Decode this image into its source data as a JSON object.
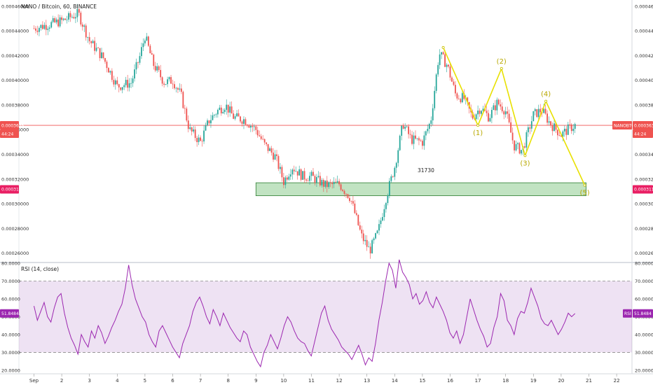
{
  "header": {
    "title": "NANO / Bitcoin, 60, BINANCE",
    "rsi_title": "RSI (14, close)"
  },
  "chart_data": [
    {
      "type": "candlestick",
      "symbol": "NANO / Bitcoin, 60, BINANCE",
      "ylim": [
        0.000253,
        0.000465
      ],
      "yticks": [
        "0.00026000",
        "0.00028000",
        "0.00030000",
        "0.00032000",
        "0.00034000",
        "0.00036000",
        "0.00038000",
        "0.00040000",
        "0.00042000",
        "0.00044000",
        "0.00046000"
      ],
      "xticks": [
        "Sep",
        "2",
        "3",
        "4",
        "5",
        "6",
        "7",
        "8",
        "9",
        "10",
        "11",
        "12",
        "13",
        "14",
        "15",
        "16",
        "17",
        "18",
        "19",
        "20",
        "21",
        "22"
      ],
      "close_path": [
        [
          0,
          0.000442
        ],
        [
          1,
          0.000448
        ],
        [
          1.6,
          0.000454
        ],
        [
          2,
          0.000432
        ],
        [
          2.5,
          0.000418
        ],
        [
          3,
          0.000395
        ],
        [
          3.5,
          0.000398
        ],
        [
          3.8,
          0.000418
        ],
        [
          4,
          0.000436
        ],
        [
          4.3,
          0.000413
        ],
        [
          4.7,
          0.000398
        ],
        [
          5,
          0.0004
        ],
        [
          5.3,
          0.000388
        ],
        [
          5.6,
          0.00036
        ],
        [
          6,
          0.00035
        ],
        [
          6.3,
          0.000367
        ],
        [
          6.6,
          0.000375
        ],
        [
          6.9,
          0.00038
        ],
        [
          7.2,
          0.00037
        ],
        [
          7.6,
          0.000368
        ],
        [
          8,
          0.00036
        ],
        [
          8.3,
          0.000348
        ],
        [
          8.7,
          0.000338
        ],
        [
          9,
          0.000318
        ],
        [
          9.3,
          0.00033
        ],
        [
          9.7,
          0.000322
        ],
        [
          10,
          0.000322
        ],
        [
          10.5,
          0.000315
        ],
        [
          11,
          0.000316
        ],
        [
          11.4,
          0.000305
        ],
        [
          11.8,
          0.000274
        ],
        [
          12.1,
          0.000262
        ],
        [
          12.4,
          0.000277
        ],
        [
          12.7,
          0.000306
        ],
        [
          13,
          0.00033
        ],
        [
          13.3,
          0.000365
        ],
        [
          13.6,
          0.000352
        ],
        [
          14,
          0.00035
        ],
        [
          14.3,
          0.000367
        ],
        [
          14.6,
          0.000422
        ],
        [
          14.9,
          0.000412
        ],
        [
          15.2,
          0.000388
        ],
        [
          15.5,
          0.000385
        ],
        [
          15.8,
          0.00037
        ],
        [
          16.1,
          0.000378
        ],
        [
          16.4,
          0.00037
        ],
        [
          16.7,
          0.000382
        ],
        [
          17,
          0.000375
        ],
        [
          17.3,
          0.000347
        ],
        [
          17.6,
          0.000343
        ],
        [
          18,
          0.000372
        ],
        [
          18.3,
          0.000376
        ],
        [
          18.6,
          0.000365
        ],
        [
          19,
          0.000356
        ],
        [
          19.3,
          0.000361
        ],
        [
          19.5,
          0.0003635
        ]
      ],
      "last_price": "0.0003635",
      "last_price_badge": "NANOBTC",
      "countdown": "44:24",
      "support_level": "0.0003117",
      "support_zone": [
        0.0003065,
        0.000317
      ],
      "elliott_wave": {
        "points": [
          [
            14.75,
            0.0004265
          ],
          [
            16.0,
            0.0003635
          ],
          [
            16.85,
            0.0004095
          ],
          [
            17.7,
            0.000339
          ],
          [
            18.45,
            0.000383
          ],
          [
            19.85,
            0.000315
          ]
        ],
        "labels": [
          "(1)",
          "(2)",
          "(3)",
          "(4)",
          "(5)"
        ]
      },
      "annotation": "31730"
    },
    {
      "type": "line",
      "name": "RSI (14, close)",
      "ylim": [
        18,
        80
      ],
      "yticks": [
        "20.0000",
        "30.0000",
        "40.0000",
        "50.0000",
        "60.0000",
        "70.0000",
        "80.0000"
      ],
      "bands": [
        30,
        70
      ],
      "last_value": "51.8484",
      "badge_right": "RSI",
      "badge_right_value": "51.8484",
      "values": [
        56,
        48,
        53,
        58,
        50,
        47,
        55,
        61,
        63,
        52,
        44,
        38,
        34,
        29,
        40,
        36,
        33,
        42,
        38,
        45,
        41,
        35,
        39,
        44,
        48,
        53,
        57,
        66,
        79,
        68,
        60,
        55,
        50,
        47,
        40,
        36,
        33,
        42,
        45,
        41,
        37,
        33,
        30,
        27,
        35,
        40,
        45,
        53,
        58,
        61,
        56,
        50,
        46,
        54,
        50,
        45,
        52,
        48,
        44,
        41,
        38,
        36,
        42,
        40,
        33,
        29,
        25,
        22,
        30,
        34,
        40,
        36,
        32,
        38,
        45,
        50,
        47,
        42,
        38,
        36,
        35,
        31,
        28,
        36,
        44,
        52,
        56,
        48,
        43,
        40,
        37,
        33,
        31,
        29,
        26,
        30,
        34,
        29,
        23,
        27,
        25,
        35,
        48,
        58,
        70,
        80,
        76,
        66,
        82,
        75,
        72,
        68,
        60,
        63,
        57,
        59,
        64,
        58,
        55,
        61,
        57,
        53,
        48,
        41,
        38,
        42,
        35,
        40,
        50,
        60,
        54,
        48,
        43,
        39,
        33,
        35,
        44,
        50,
        63,
        59,
        48,
        45,
        40,
        49,
        53,
        52,
        58,
        66,
        61,
        56,
        49,
        46,
        45,
        48,
        44,
        40,
        43,
        47,
        52,
        50,
        51.8
      ]
    }
  ]
}
